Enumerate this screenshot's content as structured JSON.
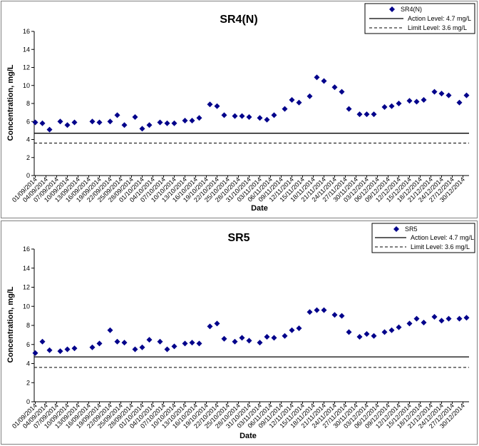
{
  "chart_data": [
    {
      "type": "scatter",
      "title": "SR4(N)",
      "xlabel": "Date",
      "ylabel": "Concentration, mg/L",
      "ylim": [
        0,
        16
      ],
      "yticks": [
        "0",
        "2",
        "4",
        "6",
        "8",
        "10",
        "12",
        "14",
        "16"
      ],
      "grid": false,
      "legend_position": "top-right",
      "marker_color": "#00008B",
      "xticks": [
        "01/09/2014",
        "04/09/2014",
        "07/09/2014",
        "10/09/2014",
        "13/09/2014",
        "16/09/2014",
        "19/09/2014",
        "22/09/2014",
        "25/09/2014",
        "28/09/2014",
        "01/10/2014",
        "04/10/2014",
        "07/10/2014",
        "10/10/2014",
        "13/10/2014",
        "16/10/2014",
        "19/10/2014",
        "22/10/2014",
        "25/10/2014",
        "28/10/2014",
        "31/10/2014",
        "03/11/2014",
        "06/11/2014",
        "09/11/2014",
        "12/11/2014",
        "15/11/2014",
        "18/11/2014",
        "21/11/2014",
        "24/11/2014",
        "27/11/2014",
        "30/11/2014",
        "03/12/2014",
        "06/12/2014",
        "09/12/2014",
        "12/12/2014",
        "15/12/2014",
        "18/12/2014",
        "21/12/2014",
        "24/12/2014",
        "27/12/2014",
        "30/12/2014"
      ],
      "series": [
        {
          "name": "SR4(N)",
          "x": [
            "01/09/2014",
            "03/09/2014",
            "05/09/2014",
            "08/09/2014",
            "10/09/2014",
            "12/09/2014",
            "17/09/2014",
            "19/09/2014",
            "22/09/2014",
            "24/09/2014",
            "26/09/2014",
            "29/09/2014",
            "01/10/2014",
            "03/10/2014",
            "06/10/2014",
            "08/10/2014",
            "10/10/2014",
            "13/10/2014",
            "15/10/2014",
            "17/10/2014",
            "20/10/2014",
            "22/10/2014",
            "24/10/2014",
            "27/10/2014",
            "29/10/2014",
            "31/10/2014",
            "03/11/2014",
            "05/11/2014",
            "07/11/2014",
            "10/11/2014",
            "12/11/2014",
            "14/11/2014",
            "17/11/2014",
            "19/11/2014",
            "21/11/2014",
            "24/11/2014",
            "26/11/2014",
            "28/11/2014",
            "01/12/2014",
            "03/12/2014",
            "05/12/2014",
            "08/12/2014",
            "10/12/2014",
            "12/12/2014",
            "15/12/2014",
            "17/12/2014",
            "19/12/2014",
            "22/12/2014",
            "24/12/2014",
            "26/12/2014",
            "29/12/2014",
            "31/12/2014"
          ],
          "y": [
            5.9,
            5.8,
            5.1,
            6.0,
            5.6,
            5.9,
            6.0,
            5.9,
            6.0,
            6.7,
            5.6,
            6.5,
            5.2,
            5.6,
            5.9,
            5.8,
            5.8,
            6.1,
            6.1,
            6.4,
            7.9,
            7.7,
            6.7,
            6.6,
            6.6,
            6.5,
            6.4,
            6.2,
            6.7,
            7.4,
            8.4,
            8.1,
            8.8,
            10.9,
            10.5,
            9.8,
            9.3,
            7.4,
            6.8,
            6.8,
            6.8,
            7.6,
            7.7,
            8.0,
            8.3,
            8.2,
            8.4,
            9.3,
            9.1,
            8.9,
            8.1,
            8.9
          ]
        }
      ],
      "hlines": [
        {
          "name": "Action Level: 4.7 mg/L",
          "value": 4.7,
          "style": "solid"
        },
        {
          "name": "Limit Level: 3.6 mg/L",
          "value": 3.6,
          "style": "dashed"
        }
      ]
    },
    {
      "type": "scatter",
      "title": "SR5",
      "xlabel": "Date",
      "ylabel": "Concentration, mg/L",
      "ylim": [
        0,
        16
      ],
      "yticks": [
        "0",
        "2",
        "4",
        "6",
        "8",
        "10",
        "12",
        "14",
        "16"
      ],
      "grid": false,
      "legend_position": "top-right",
      "marker_color": "#00008B",
      "xticks": [
        "01/09/2014",
        "04/09/2014",
        "07/09/2014",
        "10/09/2014",
        "13/09/2014",
        "16/09/2014",
        "19/09/2014",
        "22/09/2014",
        "25/09/2014",
        "28/09/2014",
        "01/10/2014",
        "04/10/2014",
        "07/10/2014",
        "10/10/2014",
        "13/10/2014",
        "16/10/2014",
        "19/10/2014",
        "22/10/2014",
        "25/10/2014",
        "28/10/2014",
        "31/10/2014",
        "03/11/2014",
        "06/11/2014",
        "09/11/2014",
        "12/11/2014",
        "15/11/2014",
        "18/11/2014",
        "21/11/2014",
        "24/11/2014",
        "27/11/2014",
        "30/11/2014",
        "03/12/2014",
        "06/12/2014",
        "09/12/2014",
        "12/12/2014",
        "15/12/2014",
        "18/12/2014",
        "21/12/2014",
        "24/12/2014",
        "27/12/2014",
        "30/12/2014"
      ],
      "series": [
        {
          "name": "SR5",
          "x": [
            "01/09/2014",
            "03/09/2014",
            "05/09/2014",
            "08/09/2014",
            "10/09/2014",
            "12/09/2014",
            "17/09/2014",
            "19/09/2014",
            "22/09/2014",
            "24/09/2014",
            "26/09/2014",
            "29/09/2014",
            "01/10/2014",
            "03/10/2014",
            "06/10/2014",
            "08/10/2014",
            "10/10/2014",
            "13/10/2014",
            "15/10/2014",
            "17/10/2014",
            "20/10/2014",
            "22/10/2014",
            "24/10/2014",
            "27/10/2014",
            "29/10/2014",
            "31/10/2014",
            "03/11/2014",
            "05/11/2014",
            "07/11/2014",
            "10/11/2014",
            "12/11/2014",
            "14/11/2014",
            "17/11/2014",
            "19/11/2014",
            "21/11/2014",
            "24/11/2014",
            "26/11/2014",
            "28/11/2014",
            "01/12/2014",
            "03/12/2014",
            "05/12/2014",
            "08/12/2014",
            "10/12/2014",
            "12/12/2014",
            "15/12/2014",
            "17/12/2014",
            "19/12/2014",
            "22/12/2014",
            "24/12/2014",
            "26/12/2014",
            "29/12/2014",
            "31/12/2014"
          ],
          "y": [
            5.1,
            6.3,
            5.4,
            5.3,
            5.5,
            5.6,
            5.7,
            6.1,
            7.5,
            6.3,
            6.2,
            5.5,
            5.7,
            6.5,
            6.3,
            5.5,
            5.8,
            6.1,
            6.2,
            6.1,
            7.9,
            8.2,
            6.6,
            6.3,
            6.7,
            6.4,
            6.2,
            6.8,
            6.7,
            6.9,
            7.5,
            7.7,
            9.4,
            9.6,
            9.6,
            9.1,
            9.0,
            7.3,
            6.8,
            7.1,
            6.9,
            7.3,
            7.5,
            7.8,
            8.2,
            8.7,
            8.3,
            8.9,
            8.5,
            8.7,
            8.7,
            8.8
          ]
        }
      ],
      "hlines": [
        {
          "name": "Action Level: 4.7 mg/L",
          "value": 4.7,
          "style": "solid"
        },
        {
          "name": "Limit Level: 3.6 mg/L",
          "value": 3.6,
          "style": "dashed"
        }
      ]
    }
  ]
}
